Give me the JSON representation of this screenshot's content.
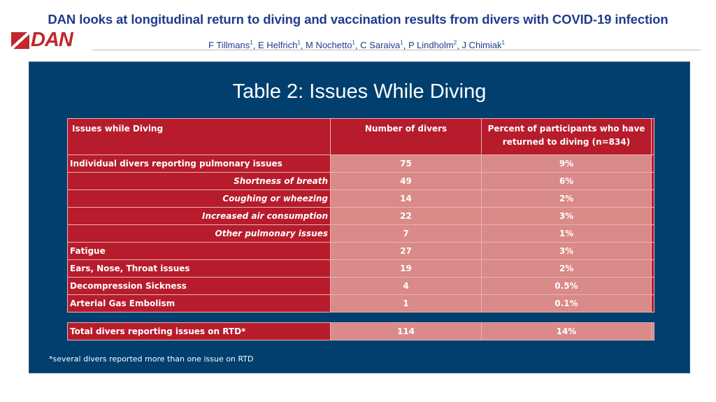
{
  "header": {
    "title": "DAN looks at longitudinal return to diving and vaccination results from divers with COVID-19 infection",
    "logo_text": "DAN",
    "authors": [
      {
        "name": "F Tillmans",
        "sup": "1"
      },
      {
        "name": "E Helfrich",
        "sup": "1"
      },
      {
        "name": "M Nochetto",
        "sup": "1"
      },
      {
        "name": "C Saraiva",
        "sup": "1"
      },
      {
        "name": "P Lindholm",
        "sup": "2"
      },
      {
        "name": "J Chimiak",
        "sup": "1"
      }
    ]
  },
  "panel": {
    "title": "Table 2: Issues While Diving",
    "footnote": "*several divers reported more than one issue on RTD"
  },
  "table": {
    "headers": [
      "Issues while Diving",
      "Number of divers",
      "Percent of participants who have returned to diving (n=834)"
    ],
    "rows": [
      {
        "label": "Individual divers reporting pulmonary issues",
        "count": "75",
        "percent": "9%"
      },
      {
        "label": "Shortness of breath",
        "count": "49",
        "percent": "6%"
      },
      {
        "label": "Coughing or wheezing",
        "count": "14",
        "percent": "2%"
      },
      {
        "label": "Increased air consumption",
        "count": "22",
        "percent": "3%"
      },
      {
        "label": "Other pulmonary issues",
        "count": "7",
        "percent": "1%"
      },
      {
        "label": "Fatigue",
        "count": "27",
        "percent": "3%"
      },
      {
        "label": "Ears, Nose, Throat issues",
        "count": "19",
        "percent": "2%"
      },
      {
        "label": "Decompression Sickness",
        "count": "4",
        "percent": "0.5%"
      },
      {
        "label": "Arterial Gas Embolism",
        "count": "1",
        "percent": "0.1%"
      }
    ],
    "total": {
      "label": "Total divers reporting issues on RTD*",
      "count": "114",
      "percent": "14%"
    }
  },
  "colors": {
    "title_text": "#1f3c8c",
    "logo_red": "#c1272d",
    "panel_bg": "#003f6e",
    "label_cell": "#b71c2c",
    "value_cell": "#d98a89"
  }
}
